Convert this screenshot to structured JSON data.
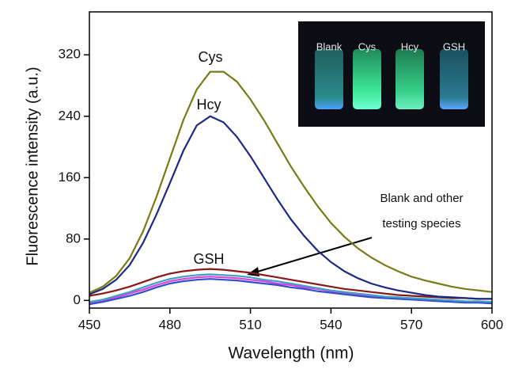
{
  "chart_data": {
    "type": "line",
    "x_label": "Wavelength (nm)",
    "y_label": "Fluorescence intensity (a.u.)",
    "x": [
      450,
      455,
      460,
      465,
      470,
      475,
      480,
      485,
      490,
      495,
      500,
      505,
      510,
      515,
      520,
      525,
      530,
      535,
      540,
      545,
      550,
      555,
      560,
      565,
      570,
      575,
      580,
      585,
      590,
      595,
      600
    ],
    "xlim": [
      450,
      600
    ],
    "xticks": [
      450,
      480,
      510,
      540,
      570,
      600
    ],
    "ylim": [
      -10,
      376
    ],
    "yticks": [
      0,
      80,
      160,
      240,
      320
    ],
    "series": [
      {
        "name": "Cys",
        "color": "#7a7a18",
        "values": [
          10,
          18,
          32,
          55,
          90,
          135,
          185,
          235,
          275,
          298,
          298,
          285,
          262,
          235,
          205,
          175,
          148,
          123,
          101,
          83,
          68,
          56,
          46,
          38,
          31,
          26,
          22,
          18,
          15,
          13,
          11
        ]
      },
      {
        "name": "Hcy",
        "color": "#1c2a86",
        "values": [
          8,
          15,
          27,
          46,
          75,
          112,
          153,
          195,
          228,
          240,
          232,
          213,
          188,
          160,
          132,
          106,
          84,
          65,
          50,
          38,
          29,
          22,
          17,
          13,
          10,
          7,
          5,
          4,
          3,
          2,
          2
        ]
      },
      {
        "name": "GSH",
        "color": "#8a1818",
        "values": [
          6,
          9,
          13,
          18,
          24,
          30,
          35,
          38,
          40,
          41,
          40,
          38,
          36,
          33,
          30,
          27,
          24,
          21,
          18,
          15,
          13,
          11,
          9,
          7,
          6,
          5,
          4,
          3,
          3,
          2,
          2
        ]
      },
      {
        "color": "#e040e0",
        "values": [
          -3,
          0,
          4,
          9,
          14,
          20,
          25,
          28,
          30,
          31,
          30,
          29,
          27,
          25,
          22,
          20,
          17,
          15,
          12,
          10,
          8,
          6,
          4,
          3,
          2,
          1,
          0,
          -1,
          -2,
          -2,
          -3
        ]
      },
      {
        "color": "#3050d0",
        "values": [
          -5,
          -2,
          2,
          6,
          11,
          17,
          22,
          25,
          27,
          28,
          27,
          26,
          24,
          22,
          20,
          17,
          15,
          12,
          10,
          8,
          6,
          4,
          3,
          2,
          1,
          0,
          -1,
          -2,
          -3,
          -3,
          -4
        ]
      },
      {
        "color": "#40a0c0",
        "values": [
          -2,
          1,
          6,
          11,
          17,
          23,
          28,
          31,
          33,
          34,
          33,
          32,
          30,
          27,
          25,
          22,
          19,
          16,
          13,
          11,
          9,
          7,
          5,
          4,
          3,
          2,
          1,
          0,
          -1,
          -1,
          -2
        ]
      }
    ],
    "annotations": [
      "Blank and other",
      "testing species"
    ],
    "inset_labels": [
      "Blank",
      "Cys",
      "Hcy",
      "GSH"
    ]
  }
}
